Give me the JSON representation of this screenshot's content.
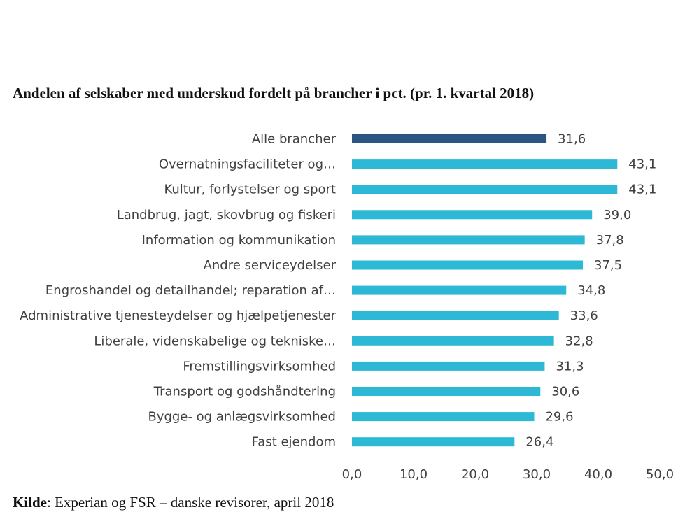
{
  "title": "Andelen af selskaber med underskud fordelt på brancher i pct. (pr. 1. kvartal 2018)",
  "source": {
    "label": "Kilde",
    "text": ": Experian og FSR – danske revisorer, april 2018"
  },
  "colors": {
    "highlight": "#2C5583",
    "bar": "#2DB8D5",
    "text": "#404040"
  },
  "chart_data": {
    "type": "bar",
    "orientation": "horizontal",
    "categories": [
      "Alle brancher",
      "Overnatningsfaciliteter og…",
      "Kultur, forlystelser og sport",
      "Landbrug, jagt, skovbrug og fiskeri",
      "Information og kommunikation",
      "Andre serviceydelser",
      "Engroshandel og detailhandel; reparation af…",
      "Administrative tjenesteydelser og hjælpetjenester",
      "Liberale, videnskabelige og tekniske…",
      "Fremstillingsvirksomhed",
      "Transport og godshåndtering",
      "Bygge- og anlægsvirksomhed",
      "Fast ejendom"
    ],
    "values": [
      31.6,
      43.1,
      43.1,
      39.0,
      37.8,
      37.5,
      34.8,
      33.6,
      32.8,
      31.3,
      30.6,
      29.6,
      26.4
    ],
    "value_labels": [
      "31,6",
      "43,1",
      "43,1",
      "39,0",
      "37,8",
      "37,5",
      "34,8",
      "33,6",
      "32,8",
      "31,3",
      "30,6",
      "29,6",
      "26,4"
    ],
    "highlight_index": 0,
    "xlim": [
      0,
      50
    ],
    "x_ticks": [
      "0,0",
      "10,0",
      "20,0",
      "30,0",
      "40,0",
      "50,0"
    ],
    "grid": false,
    "legend": "none"
  }
}
